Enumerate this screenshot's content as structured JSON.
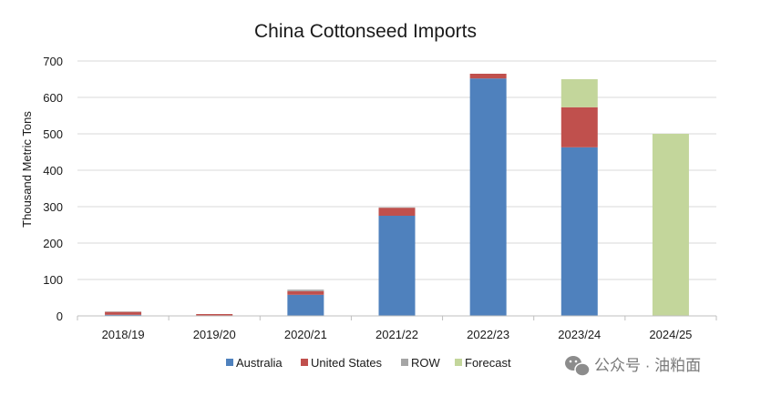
{
  "chart_data": {
    "type": "bar",
    "stacked": true,
    "title": "China Cottonseed Imports",
    "xlabel": "",
    "ylabel": "Thousand Metric Tons",
    "ylim": [
      0,
      700
    ],
    "yticks": [
      0,
      100,
      200,
      300,
      400,
      500,
      600,
      700
    ],
    "grid": true,
    "legend_position": "bottom",
    "categories": [
      "2018/19",
      "2019/20",
      "2020/21",
      "2021/22",
      "2022/23",
      "2023/24",
      "2024/25"
    ],
    "series": [
      {
        "name": "Australia",
        "color": "#4f81bd",
        "values": [
          3,
          0,
          58,
          275,
          652,
          463,
          0
        ]
      },
      {
        "name": "United States",
        "color": "#c0504d",
        "values": [
          8,
          5,
          10,
          22,
          13,
          110,
          0
        ]
      },
      {
        "name": "ROW",
        "color": "#a5a5a5",
        "values": [
          1,
          0,
          4,
          1,
          0,
          0,
          0
        ]
      },
      {
        "name": "Forecast",
        "color": "#c3d69b",
        "values": [
          0,
          0,
          0,
          0,
          0,
          77,
          500
        ]
      }
    ]
  },
  "watermark": {
    "text": "公众号 · 油粕面",
    "icon": "wechat-icon"
  }
}
